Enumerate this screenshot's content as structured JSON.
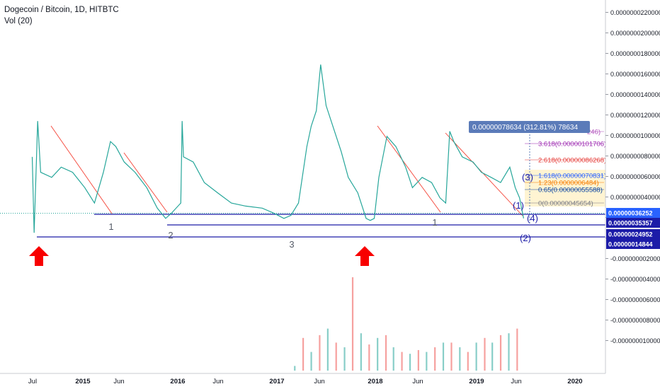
{
  "chart_data": {
    "type": "line",
    "title": "Dogecoin / Bitcoin, 1D, HITBTC",
    "indicator": "Vol (20)",
    "x_ticks": [
      "Jul",
      "2015",
      "Jun",
      "2016",
      "Jun",
      "2017",
      "Jun",
      "2018",
      "Jun",
      "2019",
      "Jun",
      "2020"
    ],
    "y_ticks": [
      "0.0000000220000",
      "0.0000000200000",
      "0.0000000180000",
      "0.0000000160000",
      "0.0000000140000",
      "0.0000000120000",
      "0.0000000100000",
      "0.0000000080000",
      "0.0000000060000",
      "0.0000000040000",
      "0.0000000020000",
      "0.0000000000000",
      "-0.0000000020000",
      "-0.0000000040000",
      "-0.0000000060000",
      "-0.0000000080000",
      "-0.0000000100000"
    ],
    "price_labels": [
      {
        "text": "0.00000036252",
        "color": "#2962ff"
      },
      {
        "text": "0.00000035357",
        "color": "#1c1ca8"
      },
      {
        "text": "0.00000024952",
        "color": "#1c1ca8"
      },
      {
        "text": "0.00000014844",
        "color": "#1c1ca8"
      }
    ],
    "measure_label": "0.00000078634 (312.81%) 78634",
    "fib_levels": [
      {
        "text": "246)",
        "color": "#b04fbb"
      },
      {
        "text": "3.618(0.00000101706)",
        "color": "#9c27b0"
      },
      {
        "text": "2.618(0.00000086268)",
        "color": "#e53935"
      },
      {
        "text": "1.618(0.00000070831)",
        "color": "#2962ff"
      },
      {
        "text": "1.23(0.0000006484)",
        "color": "#f57c00"
      },
      {
        "text": "0.65(0.00000055588)",
        "color": "#0d47a1"
      },
      {
        "text": "0(0.00000045654)",
        "color": "#787b86"
      }
    ],
    "wave_labels": [
      "1",
      "2",
      "3",
      "1",
      "(1)",
      "(2)",
      "(3)",
      "(4)"
    ],
    "series": [
      {
        "name": "",
        "x": [
          "2014-07-05",
          "2014-07-12",
          "2014-07-25",
          "2014-08-05",
          "2014-09-15",
          "2014-10-20",
          "2014-12-01",
          "2015-01-15",
          "2015-02-20",
          "2015-03-25",
          "2015-04-20",
          "2015-05-10",
          "2015-06-10",
          "2015-07-20",
          "2015-09-01",
          "2015-10-10",
          "2015-11-10",
          "2015-12-01",
          "2016-01-05",
          "2016-01-10",
          "2016-01-15",
          "2016-02-20",
          "2016-04-01",
          "2016-05-20",
          "2016-07-10",
          "2016-09-01",
          "2016-11-01",
          "2016-12-15",
          "2017-01-20",
          "2017-02-15",
          "2017-03-15",
          "2017-04-15",
          "2017-05-01",
          "2017-05-20",
          "2017-06-05",
          "2017-06-25",
          "2017-07-20",
          "2017-08-20",
          "2017-09-15",
          "2017-10-20",
          "2017-11-20",
          "2017-12-05",
          "2017-12-20",
          "2018-01-06",
          "2018-02-05",
          "2018-03-10",
          "2018-04-15",
          "2018-05-10",
          "2018-06-15",
          "2018-07-20",
          "2018-08-20",
          "2018-09-10",
          "2018-09-25",
          "2018-10-10",
          "2018-11-10",
          "2018-12-20",
          "2019-01-20",
          "2019-02-25",
          "2019-04-01",
          "2019-05-05",
          "2019-05-25",
          "2019-06-10",
          "2019-06-25"
        ],
        "values": [
          8.0,
          0.6,
          11.5,
          6.5,
          6.0,
          7.0,
          6.5,
          5.0,
          3.5,
          6.5,
          9.5,
          9.0,
          7.5,
          6.5,
          5.0,
          3.0,
          2.0,
          2.5,
          3.5,
          11.5,
          8.0,
          7.5,
          5.5,
          4.5,
          3.5,
          3.2,
          3.0,
          2.5,
          2.0,
          2.3,
          3.5,
          9.0,
          11.0,
          12.5,
          17.0,
          13.0,
          11.0,
          8.5,
          6.0,
          4.5,
          2.0,
          1.8,
          2.0,
          6.0,
          10.0,
          9.0,
          7.0,
          5.0,
          6.0,
          5.5,
          4.0,
          3.5,
          10.5,
          9.5,
          8.0,
          7.5,
          6.5,
          6.0,
          5.5,
          7.0,
          5.0,
          4.0,
          2.0
        ]
      }
    ],
    "volume": {
      "x": [
        "2017-03-01",
        "2017-04-01",
        "2017-05-01",
        "2017-06-01",
        "2017-07-01",
        "2017-08-01",
        "2017-09-01",
        "2017-10-01",
        "2017-11-01",
        "2017-12-01",
        "2018-01-01",
        "2018-02-01",
        "2018-03-01",
        "2018-04-01",
        "2018-05-01",
        "2018-06-01",
        "2018-07-01",
        "2018-08-01",
        "2018-09-01",
        "2018-10-01",
        "2018-11-01",
        "2018-12-01",
        "2019-01-01",
        "2019-02-01",
        "2019-03-01",
        "2019-04-01",
        "2019-05-01",
        "2019-06-01"
      ],
      "values": [
        5,
        35,
        20,
        38,
        45,
        30,
        25,
        100,
        40,
        28,
        35,
        38,
        25,
        20,
        18,
        22,
        20,
        25,
        30,
        30,
        25,
        20,
        30,
        35,
        30,
        38,
        40,
        45
      ]
    },
    "grid": false,
    "legend": "top-left"
  }
}
